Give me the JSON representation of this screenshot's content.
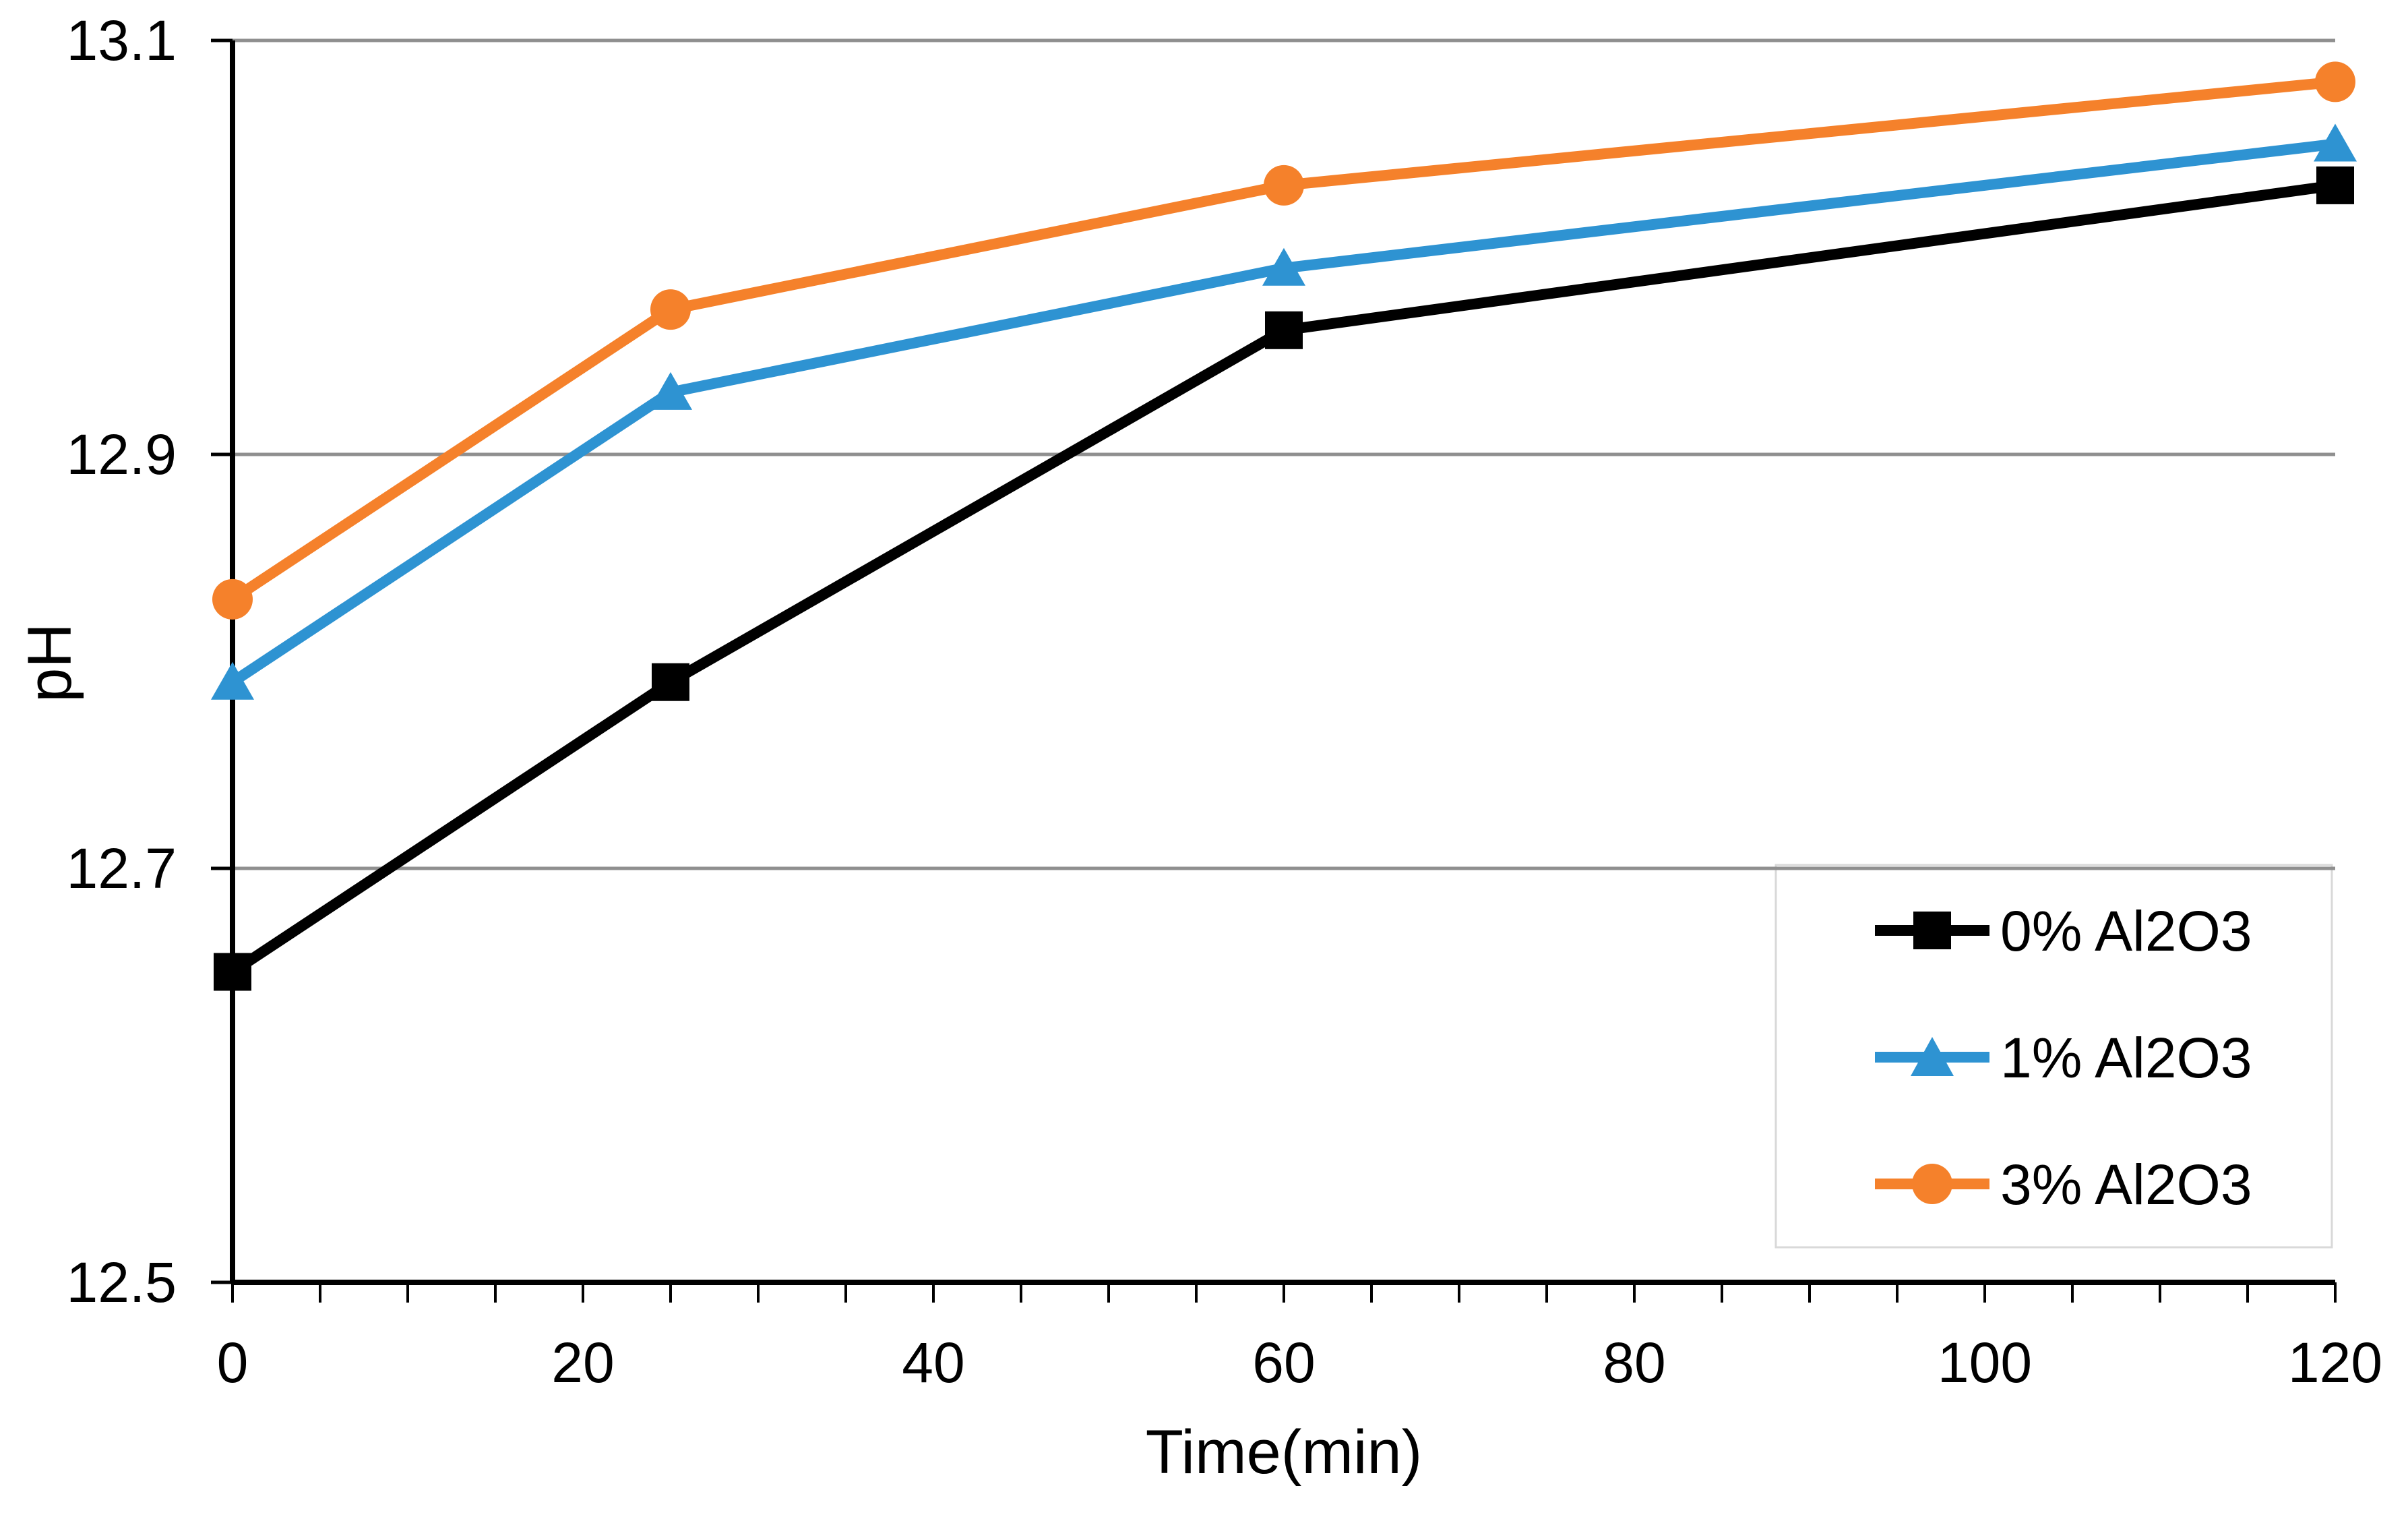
{
  "chart_data": {
    "type": "line",
    "title": "",
    "xlabel": "Time(min)",
    "ylabel": "pH",
    "x": [
      0,
      25,
      60,
      120
    ],
    "series": [
      {
        "name": "0% Al2O3",
        "marker": "square",
        "color": "#000000",
        "values": [
          12.65,
          12.79,
          12.96,
          13.03
        ]
      },
      {
        "name": "1% Al2O3",
        "marker": "triangle",
        "color": "#2E93D2",
        "values": [
          12.79,
          12.93,
          12.99,
          13.05
        ]
      },
      {
        "name": "3% Al2O3",
        "marker": "circle",
        "color": "#F5812B",
        "values": [
          12.83,
          12.97,
          13.03,
          13.08
        ]
      }
    ],
    "xlim": [
      0,
      120
    ],
    "ylim": [
      12.5,
      13.1
    ],
    "x_tick_values": [
      0,
      20,
      40,
      60,
      80,
      100,
      120
    ],
    "x_tick_labels": [
      "0",
      "20",
      "40",
      "60",
      "80",
      "100",
      "120"
    ],
    "x_minor_tick_step": 5,
    "y_tick_values": [
      12.5,
      12.7,
      12.9,
      13.1
    ],
    "y_tick_labels": [
      "12.5",
      "12.7",
      "12.9",
      "13.1"
    ],
    "grid": "horizontal",
    "legend_position": "bottom-right",
    "colors": {
      "gridline": "#8F8F8F",
      "axis": "#000000",
      "text": "#000000",
      "legend_border": "#D9D9D9",
      "background": "#FFFFFF"
    }
  }
}
